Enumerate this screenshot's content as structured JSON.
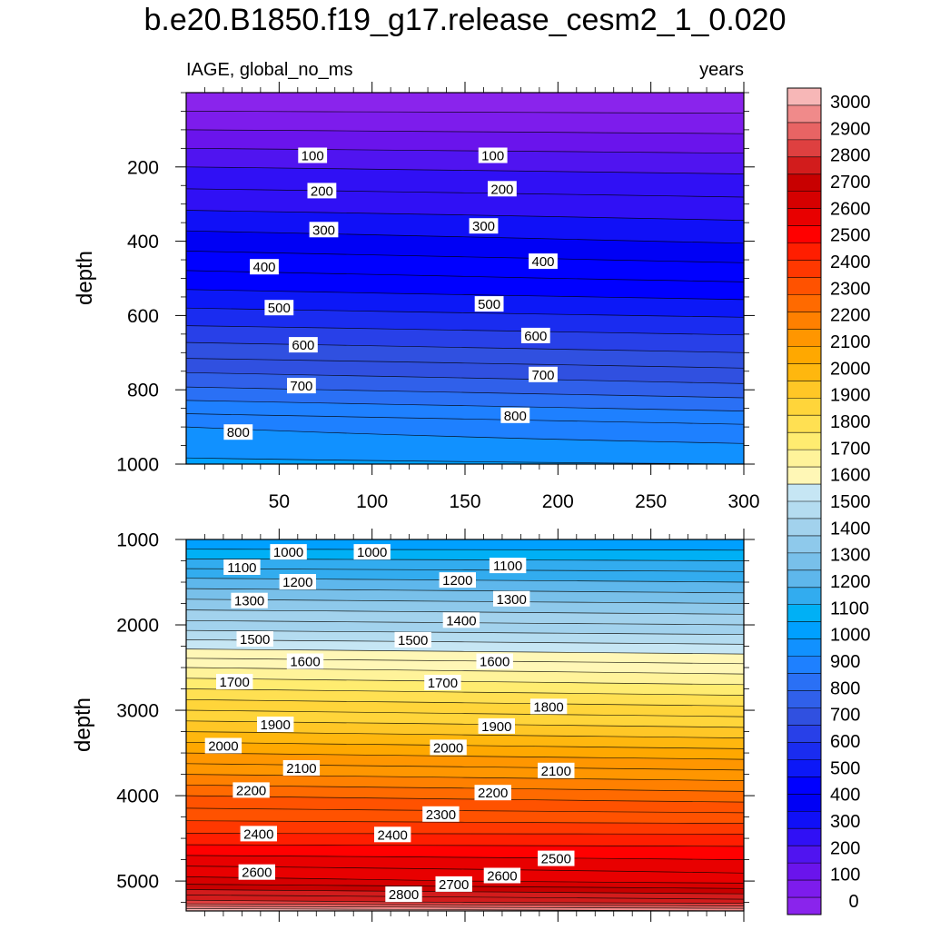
{
  "figure": {
    "title": "b.e20.B1850.f19_g17.release_cesm2_1_0.020",
    "left_string": "IAGE, global_no_ms",
    "right_string": "years"
  },
  "chart_data": {
    "type": "contour",
    "variable": "IAGE",
    "region": "global_no_ms",
    "units": "years",
    "x": {
      "label": "",
      "range": [
        0,
        300
      ],
      "ticks": [
        50,
        100,
        150,
        200,
        250,
        300
      ]
    },
    "panels": [
      {
        "name": "upper",
        "depth_range": [
          0,
          1000
        ],
        "ylabel": "depth",
        "yticks": [
          200,
          400,
          600,
          800,
          1000
        ],
        "show_x_tick_labels": true,
        "depth_anchor_values": [
          0,
          100,
          200,
          300,
          400,
          500,
          600,
          700,
          800,
          900,
          1000
        ],
        "depth_anchor_age_start": [
          0,
          100,
          200,
          285,
          375,
          470,
          570,
          680,
          810,
          950,
          1010
        ],
        "depth_anchor_age_end": [
          0,
          90,
          185,
          265,
          345,
          440,
          545,
          650,
          770,
          910,
          1000
        ],
        "contour_labels": [
          {
            "text": "100",
            "x": 68,
            "depth": 170
          },
          {
            "text": "100",
            "x": 165,
            "depth": 170
          },
          {
            "text": "200",
            "x": 73,
            "depth": 265
          },
          {
            "text": "200",
            "x": 170,
            "depth": 260
          },
          {
            "text": "300",
            "x": 74,
            "depth": 370
          },
          {
            "text": "300",
            "x": 160,
            "depth": 360
          },
          {
            "text": "400",
            "x": 42,
            "depth": 470
          },
          {
            "text": "400",
            "x": 192,
            "depth": 455
          },
          {
            "text": "500",
            "x": 50,
            "depth": 580
          },
          {
            "text": "500",
            "x": 163,
            "depth": 570
          },
          {
            "text": "600",
            "x": 63,
            "depth": 680
          },
          {
            "text": "600",
            "x": 188,
            "depth": 655
          },
          {
            "text": "700",
            "x": 62,
            "depth": 790
          },
          {
            "text": "700",
            "x": 192,
            "depth": 760
          },
          {
            "text": "800",
            "x": 28,
            "depth": 915
          },
          {
            "text": "800",
            "x": 177,
            "depth": 870
          }
        ]
      },
      {
        "name": "lower",
        "depth_range": [
          1000,
          5350
        ],
        "ylabel": "depth",
        "yticks": [
          1000,
          2000,
          3000,
          4000,
          5000
        ],
        "show_x_tick_labels": false,
        "depth_anchor_values": [
          1000,
          1500,
          2000,
          2500,
          3000,
          3500,
          4000,
          4500,
          5000,
          5250,
          5350
        ],
        "depth_anchor_age_start": [
          1000,
          1220,
          1420,
          1650,
          1850,
          2050,
          2250,
          2420,
          2620,
          2820,
          3000
        ],
        "depth_anchor_age_end": [
          1000,
          1200,
          1400,
          1620,
          1820,
          2020,
          2220,
          2420,
          2580,
          2780,
          2950
        ],
        "contour_labels": [
          {
            "text": "1000",
            "x": 55,
            "depth": 1150
          },
          {
            "text": "1000",
            "x": 100,
            "depth": 1150
          },
          {
            "text": "1100",
            "x": 30,
            "depth": 1330
          },
          {
            "text": "1100",
            "x": 173,
            "depth": 1310
          },
          {
            "text": "1200",
            "x": 60,
            "depth": 1500
          },
          {
            "text": "1200",
            "x": 146,
            "depth": 1480
          },
          {
            "text": "1300",
            "x": 34,
            "depth": 1720
          },
          {
            "text": "1300",
            "x": 175,
            "depth": 1700
          },
          {
            "text": "1400",
            "x": 148,
            "depth": 1950
          },
          {
            "text": "1500",
            "x": 37,
            "depth": 2170
          },
          {
            "text": "1500",
            "x": 122,
            "depth": 2180
          },
          {
            "text": "1600",
            "x": 64,
            "depth": 2430
          },
          {
            "text": "1600",
            "x": 166,
            "depth": 2430
          },
          {
            "text": "1700",
            "x": 26,
            "depth": 2670
          },
          {
            "text": "1700",
            "x": 138,
            "depth": 2680
          },
          {
            "text": "1800",
            "x": 195,
            "depth": 2960
          },
          {
            "text": "1900",
            "x": 48,
            "depth": 3170
          },
          {
            "text": "1900",
            "x": 167,
            "depth": 3190
          },
          {
            "text": "2000",
            "x": 20,
            "depth": 3420
          },
          {
            "text": "2000",
            "x": 141,
            "depth": 3440
          },
          {
            "text": "2100",
            "x": 62,
            "depth": 3680
          },
          {
            "text": "2100",
            "x": 199,
            "depth": 3710
          },
          {
            "text": "2200",
            "x": 35,
            "depth": 3940
          },
          {
            "text": "2200",
            "x": 165,
            "depth": 3970
          },
          {
            "text": "2300",
            "x": 137,
            "depth": 4220
          },
          {
            "text": "2400",
            "x": 39,
            "depth": 4450
          },
          {
            "text": "2400",
            "x": 111,
            "depth": 4460
          },
          {
            "text": "2500",
            "x": 199,
            "depth": 4740
          },
          {
            "text": "2600",
            "x": 38,
            "depth": 4900
          },
          {
            "text": "2600",
            "x": 170,
            "depth": 4940
          },
          {
            "text": "2700",
            "x": 144,
            "depth": 5040
          },
          {
            "text": "2800",
            "x": 117,
            "depth": 5160
          }
        ]
      }
    ],
    "contour_levels": [
      0,
      100,
      200,
      300,
      400,
      500,
      600,
      700,
      800,
      900,
      1000,
      1100,
      1200,
      1300,
      1400,
      1500,
      1600,
      1700,
      1800,
      1900,
      2000,
      2100,
      2200,
      2300,
      2400,
      2500,
      2600,
      2700,
      2800,
      2900,
      3000
    ],
    "contour_interval_fine": 50,
    "colorbar": {
      "labels": [
        "3000",
        "2900",
        "2800",
        "2700",
        "2600",
        "2500",
        "2400",
        "2300",
        "2200",
        "2100",
        "2000",
        "1900",
        "1800",
        "1700",
        "1600",
        "1500",
        "1400",
        "1300",
        "1200",
        "1100",
        "1000",
        "900",
        "800",
        "700",
        "600",
        "500",
        "400",
        "300",
        "200",
        "100",
        "0"
      ],
      "colors": [
        "#f7b7b7",
        "#f08a8a",
        "#e86464",
        "#de4040",
        "#d21c1c",
        "#c80000",
        "#d60000",
        "#e80000",
        "#ff0000",
        "#ff1e00",
        "#ff3800",
        "#ff5200",
        "#ff6a00",
        "#ff8000",
        "#ff9600",
        "#ffa800",
        "#ffb70e",
        "#ffc726",
        "#ffd53a",
        "#ffe052",
        "#ffec70",
        "#fff39a",
        "#fff7b6",
        "#c6e6f4",
        "#b4dcf0",
        "#a2d2ed",
        "#8ec9eb",
        "#78c0ea",
        "#5eb7ec",
        "#32acef",
        "#00b0f5",
        "#00a0ff",
        "#1191ff",
        "#1e80ff",
        "#2a70f5",
        "#3060ea",
        "#3050e0",
        "#2840e8",
        "#1a2cf0",
        "#0c18f7",
        "#0000ff",
        "#0000f5",
        "#1010f7",
        "#3010f5",
        "#5014f0",
        "#6a14ec",
        "#7d1cec",
        "#8a24ec"
      ]
    }
  }
}
